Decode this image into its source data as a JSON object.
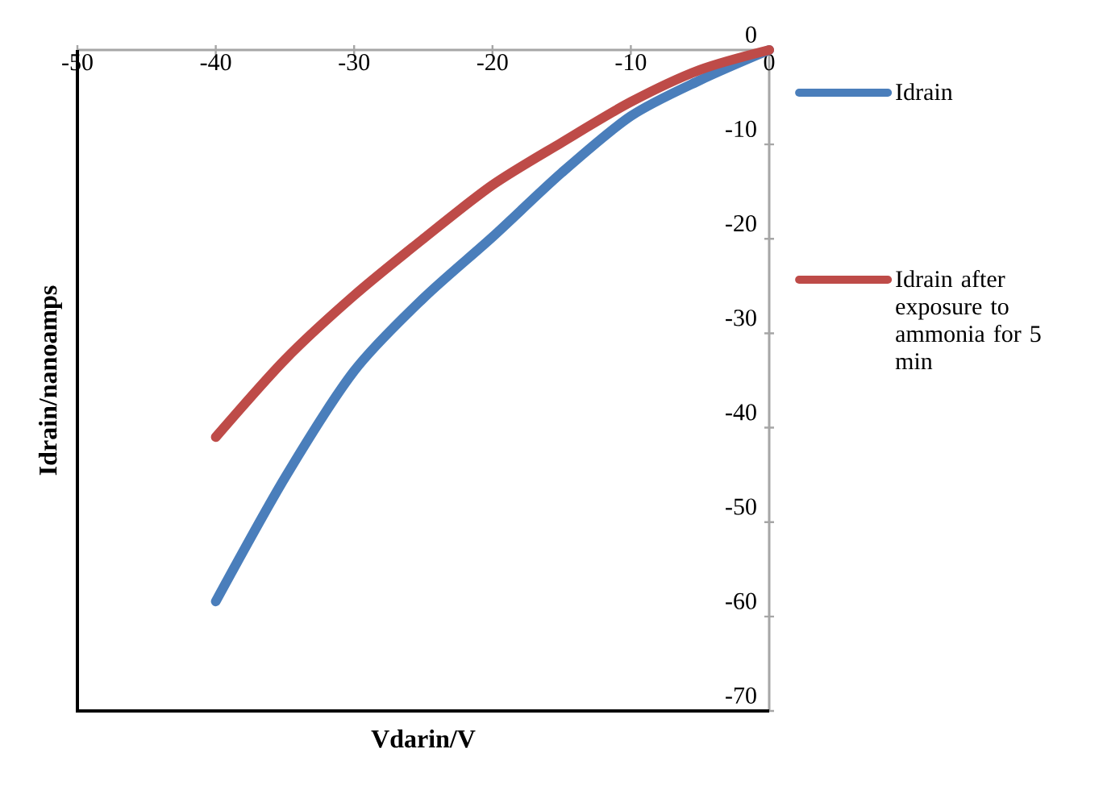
{
  "chart_data": {
    "type": "line",
    "xlabel": "Vdarin/V",
    "ylabel": "Idrain/nanoamps",
    "x": [
      -40,
      -35,
      -30,
      -25,
      -20,
      -15,
      -10,
      -5,
      0
    ],
    "series": [
      {
        "name": "Idrain",
        "color": "#4a7ebb",
        "values": [
          -58.4,
          -45.3,
          -34,
          -26.3,
          -19.8,
          -13,
          -7,
          -3.2,
          0
        ]
      },
      {
        "name": "Idrain after exposure to ammonia for 5 min",
        "color": "#be4b48",
        "values": [
          -41,
          -32.8,
          -26,
          -20,
          -14.3,
          -9.8,
          -5.5,
          -2.1,
          0
        ]
      }
    ],
    "xlim": [
      -50,
      0
    ],
    "xticks": [
      -50,
      -40,
      -30,
      -20,
      -10,
      0
    ],
    "ylim": [
      -70,
      0
    ],
    "yticks": [
      -70,
      -60,
      -50,
      -40,
      -30,
      -20,
      -10,
      0
    ],
    "grid": false,
    "legend": "right",
    "marker": "none",
    "line_style": "solid"
  }
}
